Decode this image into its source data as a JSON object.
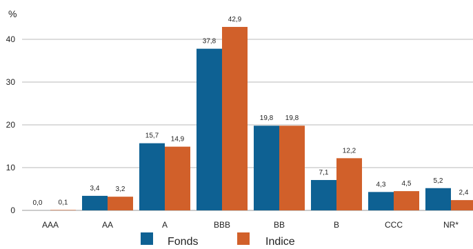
{
  "chart_data": {
    "type": "bar",
    "title": "",
    "xlabel": "",
    "ylabel": "%",
    "ylim": [
      0,
      45
    ],
    "yticks": [
      "0",
      "10",
      "20",
      "30",
      "40"
    ],
    "grid": true,
    "legend_position": "bottom",
    "categories": [
      "AAA",
      "AA",
      "A",
      "BBB",
      "BB",
      "B",
      "CCC",
      "NR*"
    ],
    "series": [
      {
        "name": "Fonds",
        "color": "#0E6193",
        "values": [
          0.0,
          3.4,
          15.7,
          37.8,
          19.8,
          7.1,
          4.3,
          5.2
        ],
        "labels": [
          "0,0",
          "3,4",
          "15,7",
          "37,8",
          "19,8",
          "7,1",
          "4,3",
          "5,2"
        ]
      },
      {
        "name": "Indice",
        "color": "#D1602A",
        "values": [
          0.1,
          3.2,
          14.9,
          42.9,
          19.8,
          12.2,
          4.5,
          2.4
        ],
        "labels": [
          "0,1",
          "3,2",
          "14,9",
          "42,9",
          "19,8",
          "12,2",
          "4,5",
          "2,4"
        ]
      }
    ]
  }
}
